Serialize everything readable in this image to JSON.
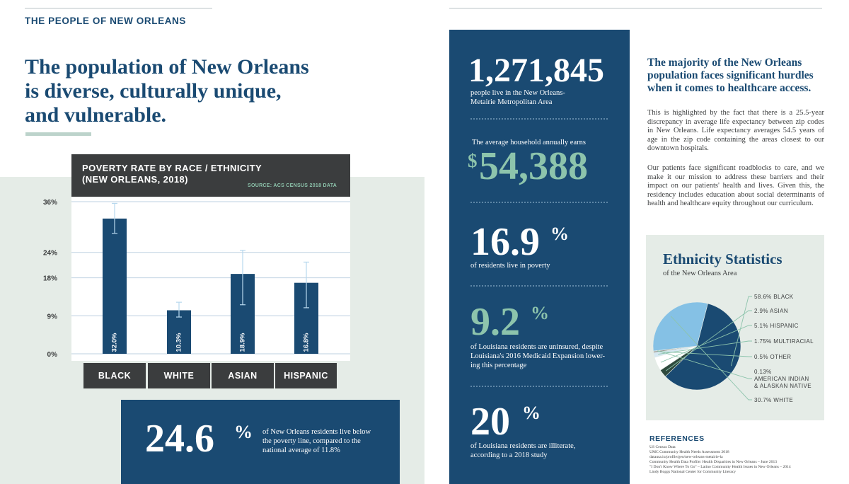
{
  "section_label": "THE PEOPLE OF NEW ORLEANS",
  "headline": [
    "The population of New Orleans",
    "is diverse, culturally unique,",
    "and vulnerable."
  ],
  "colors": {
    "navy": "#1a4a72",
    "mint": "#8dc4ac",
    "charcoal": "#3b3d3e",
    "mint_bg": "#e5ece7"
  },
  "chart_data": {
    "type": "bar",
    "title_line1": "POVERTY RATE BY RACE / ETHNICITY",
    "title_line2": "(NEW ORLEANS, 2018)",
    "source": "SOURCE: ACS CENSUS 2018 DATA",
    "categories": [
      "BLACK",
      "WHITE",
      "ASIAN",
      "HISPANIC"
    ],
    "values": [
      32.0,
      10.3,
      18.9,
      16.8
    ],
    "value_labels": [
      "32.0%",
      "10.3%",
      "18.9%",
      "16.8%"
    ],
    "error_bars": [
      [
        28.5,
        35.6
      ],
      [
        8.7,
        12.2
      ],
      [
        11.6,
        24.5
      ],
      [
        10.9,
        21.7
      ]
    ],
    "y_ticks": [
      0,
      9,
      18,
      24,
      36
    ],
    "y_tick_labels": [
      "0%",
      "9%",
      "18%",
      "24%",
      "36%"
    ],
    "ylim": [
      0,
      36
    ],
    "grid": true
  },
  "poverty_callout": {
    "number": "24.6",
    "unit": "%",
    "text": "of New Orleans residents live below the poverty line, compared to the national average of 11.8%"
  },
  "stats": {
    "population": {
      "number": "1,271,845",
      "text": [
        "people live in the New Orleans-",
        "Metairie Metropolitan Area"
      ]
    },
    "income": {
      "intro": "The average household annually earns",
      "currency": "$",
      "number": "54,388"
    },
    "poverty": {
      "number": "16.9",
      "unit": "%",
      "text": "of residents live in poverty"
    },
    "uninsured": {
      "number": "9.2",
      "unit": "%",
      "text": [
        "of Louisiana residents are uninsured, despite",
        "Louisiana's 2016 Medicaid Expansion lower-",
        "ing this percentage"
      ]
    },
    "illiterate": {
      "number": "20",
      "unit": "%",
      "text": [
        "of Louisiana residents are illiterate,",
        "according to a 2018 study"
      ]
    }
  },
  "right": {
    "heading": [
      "The majority of the New Orleans",
      "population faces significant hurdles",
      "when it comes to healthcare access."
    ],
    "paragraph1": "This is highlighted by the fact that there is a 25.5-year discrepancy in average life expectancy between zip codes in New Orleans.  Life expectancy averages 54.5 years of age in the zip code containing the areas closest to our downtown hospitals.",
    "paragraph2": "Our patients face significant roadblocks to care, and we make it our mission to address these barriers and their impact on our patients' health and lives. Given this, the residency includes education about social determinants of health and healthcare equity throughout our curriculum."
  },
  "ethnicity": {
    "title": "Ethnicity Statistics",
    "subtitle": "of the New Orleans Area",
    "slices": [
      {
        "label": "BLACK",
        "value": 58.6,
        "display": "58.6% BLACK",
        "color": "#1a4a72"
      },
      {
        "label": "ASIAN",
        "value": 2.9,
        "display": "2.9% ASIAN",
        "color": "#2f4a3e"
      },
      {
        "label": "HISPANIC",
        "value": 5.1,
        "display": "5.1% HISPANIC",
        "color": "#ffffff"
      },
      {
        "label": "MULTIRACIAL",
        "value": 1.75,
        "display": "1.75% MULTIRACIAL",
        "color": "#d6e8f2"
      },
      {
        "label": "OTHER",
        "value": 0.5,
        "display": "0.5% OTHER",
        "color": "#8a8a8a"
      },
      {
        "label": "AMERICAN INDIAN & ALASKAN NATIVE",
        "value": 0.13,
        "display": [
          "0.13%",
          "AMERICAN INDIAN",
          "& ALASKAN NATIVE"
        ],
        "color": "#cfd8d0"
      },
      {
        "label": "WHITE",
        "value": 30.7,
        "display": "30.7% WHITE",
        "color": "#85c1e5"
      }
    ]
  },
  "references": {
    "title": "REFERENCES",
    "items": [
      "US Census Data",
      "UMC Community Health Needs Assessment 2018",
      "datausa.io/profile/geo/new-orleans-metairie-la",
      "Community Health Data Profile: Health Disparities in New Orleans – June 2013",
      "\"I Don't Know Where To Go\" – Latino Community Health Issues in New Orleans – 2014",
      "Lindy Boggs National Center for Community Literacy"
    ]
  }
}
